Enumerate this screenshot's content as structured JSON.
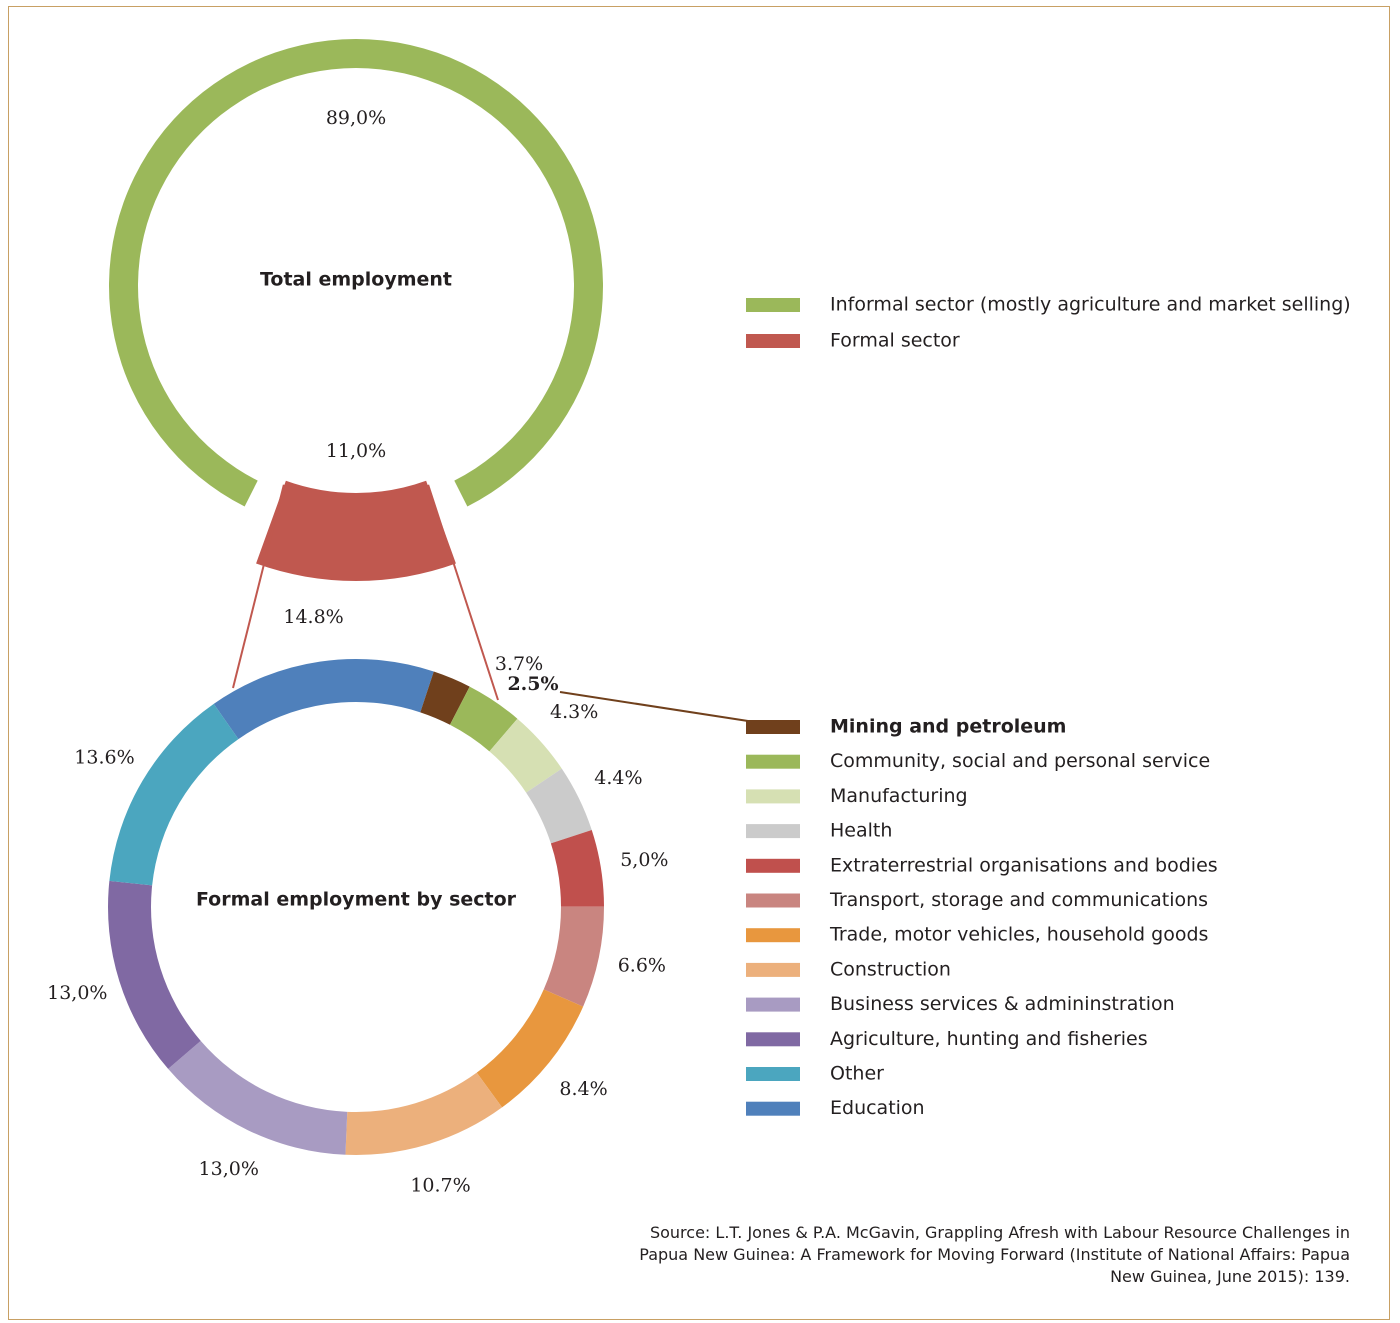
{
  "chart_data": [
    {
      "type": "donut",
      "title": "Total employment",
      "series": [
        {
          "name": "Informal sector (mostly agriculture and market selling)",
          "value": 89.0,
          "label": "89,0%",
          "color": "#9bb85a"
        },
        {
          "name": "Formal sector",
          "value": 11.0,
          "label": "11,0%",
          "color": "#c0584f"
        }
      ]
    },
    {
      "type": "donut",
      "title": "Formal employment by sector",
      "series": [
        {
          "name": "Education",
          "value": 14.8,
          "label": "14.8%",
          "color": "#4f80bb"
        },
        {
          "name": "Mining and petroleum",
          "value": 2.5,
          "label": "2.5%",
          "color": "#70401c",
          "highlight": true
        },
        {
          "name": "Community, social and personal service",
          "value": 3.7,
          "label": "3.7%",
          "color": "#9bb85a"
        },
        {
          "name": "Manufacturing",
          "value": 4.3,
          "label": "4.3%",
          "color": "#d6e0b3"
        },
        {
          "name": "Health",
          "value": 4.4,
          "label": "4.4%",
          "color": "#cbcbcb"
        },
        {
          "name": "Extraterrestrial organisations and bodies",
          "value": 5.0,
          "label": "5,0%",
          "color": "#c0504d"
        },
        {
          "name": "Transport, storage and communications",
          "value": 6.6,
          "label": "6.6%",
          "color": "#c98580"
        },
        {
          "name": "Trade, motor vehicles, household goods",
          "value": 8.4,
          "label": "8.4%",
          "color": "#e8973e"
        },
        {
          "name": "Construction",
          "value": 10.7,
          "label": "10.7%",
          "color": "#ecb07c"
        },
        {
          "name": "Business services & admininstration",
          "value": 13.0,
          "label": "13,0%",
          "color": "#a89bc2"
        },
        {
          "name": "Agriculture, hunting and fisheries",
          "value": 13.0,
          "label": "13,0%",
          "color": "#8069a3"
        },
        {
          "name": "Other",
          "value": 13.6,
          "label": "13.6%",
          "color": "#4ba6bf"
        }
      ]
    }
  ],
  "legend_total": [
    {
      "label": "Informal sector (mostly agriculture and market selling)",
      "color": "#9bb85a"
    },
    {
      "label": "Formal sector",
      "color": "#c0584f"
    }
  ],
  "legend_formal": [
    {
      "label": "Mining and petroleum",
      "color": "#70401c",
      "bold": true
    },
    {
      "label": "Community, social and personal service",
      "color": "#9bb85a"
    },
    {
      "label": "Manufacturing",
      "color": "#d6e0b3"
    },
    {
      "label": "Health",
      "color": "#cbcbcb"
    },
    {
      "label": "Extraterrestrial organisations and bodies",
      "color": "#c0504d"
    },
    {
      "label": "Transport, storage and communications",
      "color": "#c98580"
    },
    {
      "label": "Trade, motor vehicles, household goods",
      "color": "#e8973e"
    },
    {
      "label": "Construction",
      "color": "#ecb07c"
    },
    {
      "label": "Business services & admininstration",
      "color": "#a89bc2"
    },
    {
      "label": "Agriculture, hunting and fisheries",
      "color": "#8069a3"
    },
    {
      "label": "Other",
      "color": "#4ba6bf"
    },
    {
      "label": "Education",
      "color": "#4f80bb"
    }
  ],
  "source": {
    "line1": "Source: L.T. Jones & P.A. McGavin, Grappling Afresh with Labour Resource Challenges in",
    "line2": "Papua New Guinea: A Framework for Moving Forward  (Institute of National Affairs: Papua",
    "line3": "New Guinea, June 2015): 139."
  },
  "colors": {
    "frame": "#c8a064",
    "connector": "#c0584f",
    "mining_leader": "#70401c"
  }
}
